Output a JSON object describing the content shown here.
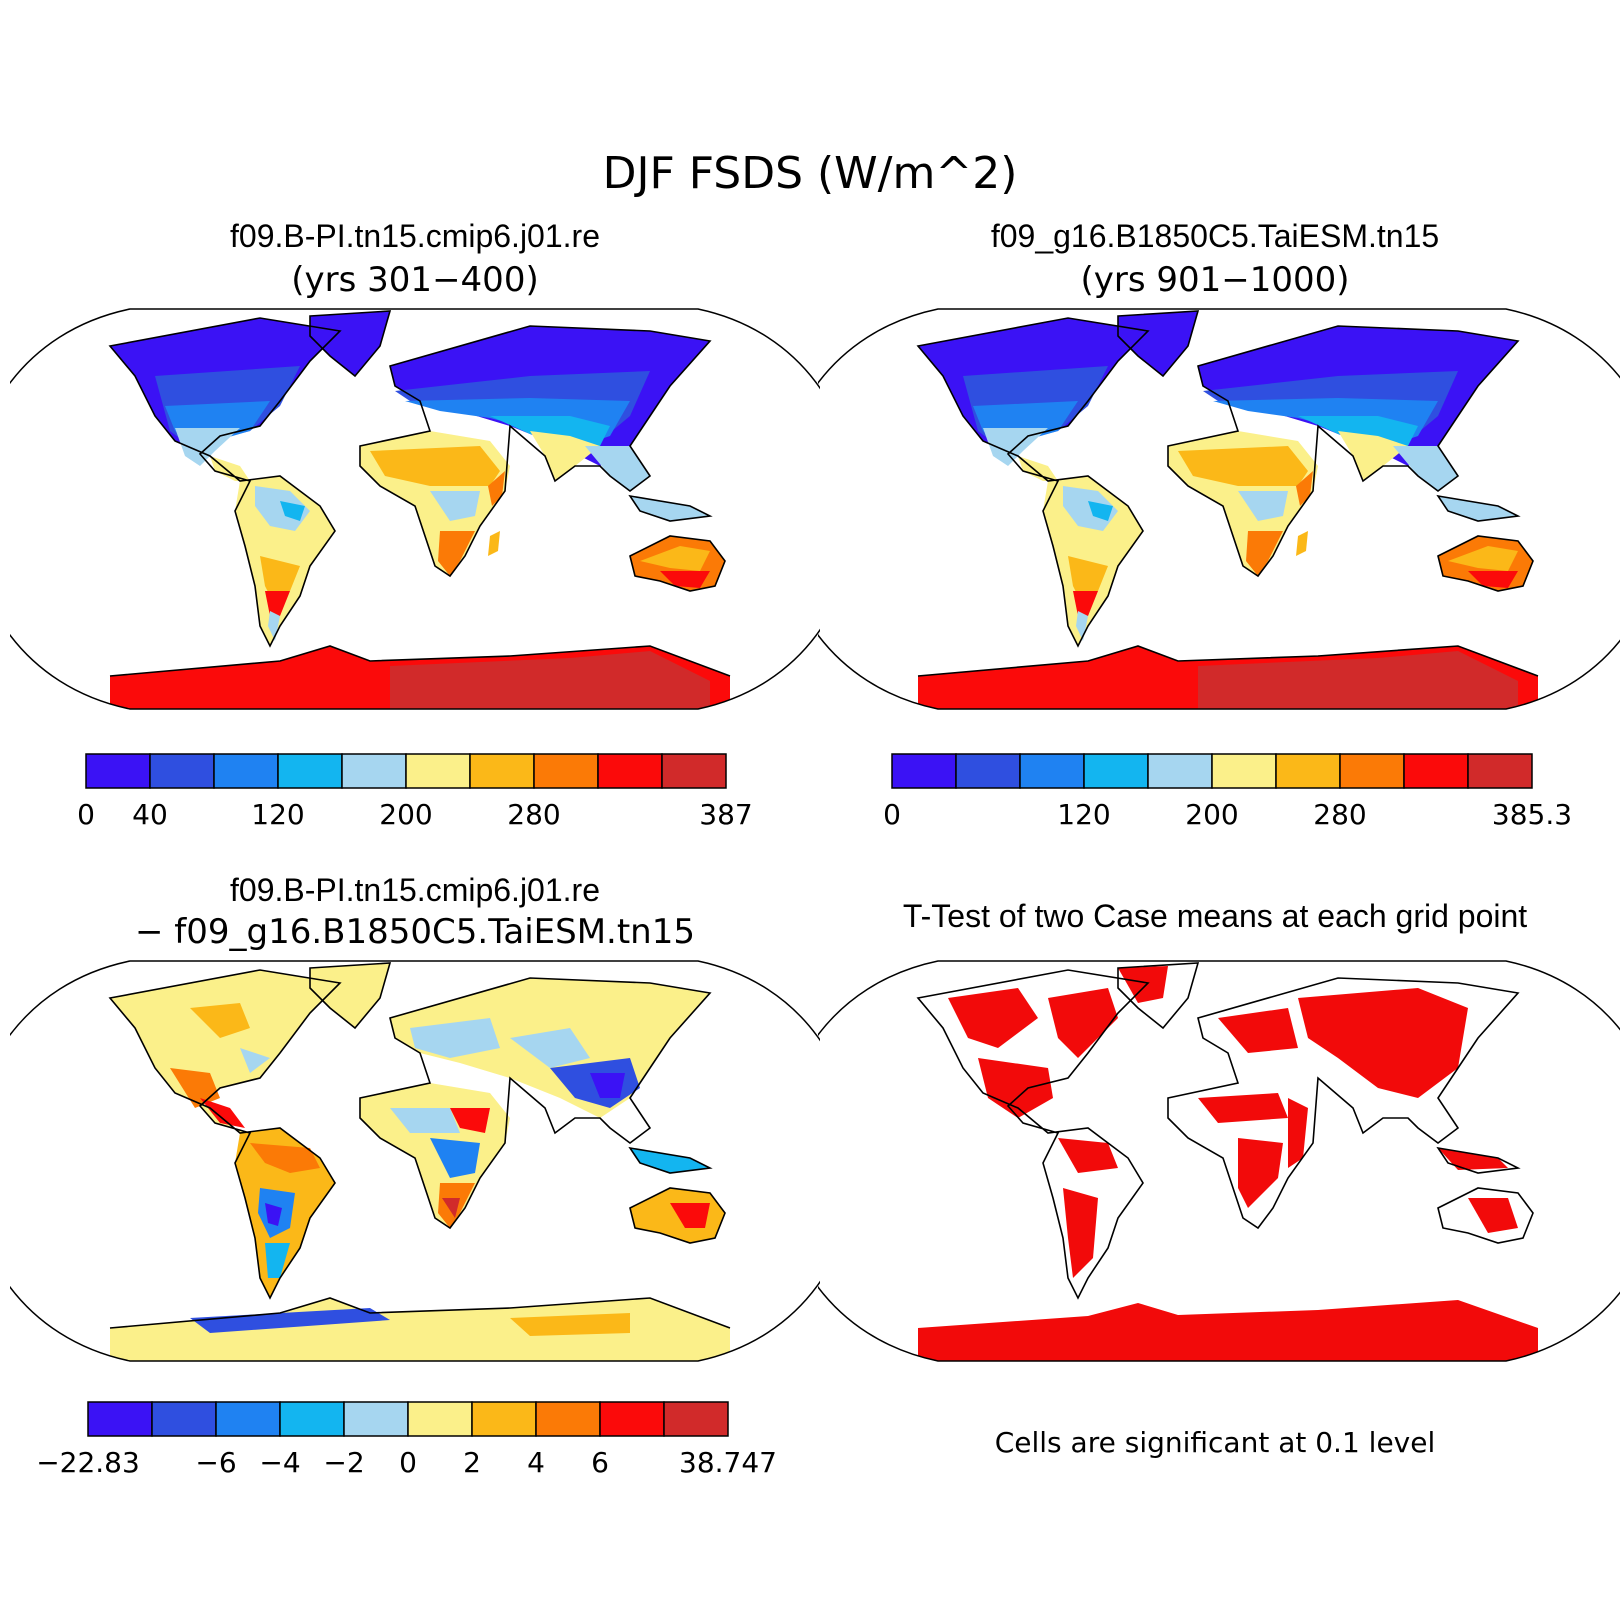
{
  "title": "DJF FSDS (W/m^2)",
  "panels": {
    "top_left": {
      "title": "f09.B-PI.tn15.cmip6.j01.re",
      "subtitle": "(yrs 301−400)"
    },
    "top_right": {
      "title": "f09_g16.B1850C5.TaiESM.tn15",
      "subtitle": "(yrs 901−1000)"
    },
    "bottom_left": {
      "title": "f09.B-PI.tn15.cmip6.j01.re",
      "subtitle": "− f09_g16.B1850C5.TaiESM.tn15"
    },
    "bottom_right": {
      "title": "T-Test of two Case means at each grid point",
      "note": "Cells are significant at 0.1 level"
    }
  },
  "colorbars": {
    "colors": [
      "#3b12f5",
      "#2f4fe0",
      "#1f82f2",
      "#13b5f0",
      "#a6d6f0",
      "#fbf08a",
      "#fbb818",
      "#fb7a06",
      "#fb0a0a",
      "#d12a2a"
    ],
    "top_left_labels": [
      {
        "boundary": 0,
        "text": "0"
      },
      {
        "boundary": 1,
        "text": "40"
      },
      {
        "boundary": 3,
        "text": "120"
      },
      {
        "boundary": 5,
        "text": "200"
      },
      {
        "boundary": 7,
        "text": "280"
      },
      {
        "boundary": 10,
        "text": "387"
      }
    ],
    "top_right_labels": [
      {
        "boundary": 0,
        "text": "0"
      },
      {
        "boundary": 3,
        "text": "120"
      },
      {
        "boundary": 5,
        "text": "200"
      },
      {
        "boundary": 7,
        "text": "280"
      },
      {
        "boundary": 10,
        "text": "385.3"
      }
    ],
    "bottom_left_labels": [
      {
        "boundary": 0,
        "text": "−22.83"
      },
      {
        "boundary": 2,
        "text": "−6"
      },
      {
        "boundary": 3,
        "text": "−4"
      },
      {
        "boundary": 4,
        "text": "−2"
      },
      {
        "boundary": 5,
        "text": "0"
      },
      {
        "boundary": 6,
        "text": "2"
      },
      {
        "boundary": 7,
        "text": "4"
      },
      {
        "boundary": 8,
        "text": "6"
      },
      {
        "boundary": 10,
        "text": "38.747"
      }
    ]
  },
  "map_colors": {
    "significant": "#f20a0a",
    "coast": "#000000"
  }
}
